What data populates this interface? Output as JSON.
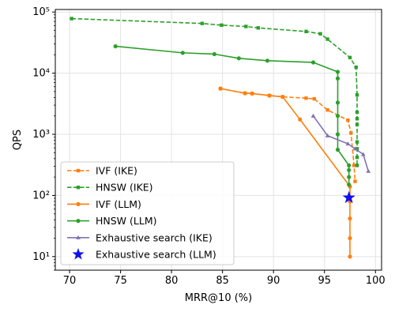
{
  "chart_data": {
    "type": "line",
    "title": "",
    "xlabel": "MRR@10 (%)",
    "ylabel": "QPS",
    "x_scale": "linear",
    "y_scale": "log",
    "xlim": [
      68.6,
      100.6
    ],
    "ylim": [
      6,
      110000
    ],
    "x_ticks": [
      70,
      75,
      80,
      85,
      90,
      95,
      100
    ],
    "y_ticks": [
      {
        "value": 10,
        "label": "10¹"
      },
      {
        "value": 100,
        "label": "10²"
      },
      {
        "value": 1000,
        "label": "10³"
      },
      {
        "value": 10000,
        "label": "10⁴"
      },
      {
        "value": 100000,
        "label": "10⁵"
      }
    ],
    "grid": true,
    "legend_position": "lower-left",
    "series": [
      {
        "name": "IVF (IKE)",
        "color": "#ff7f0e",
        "linestyle": "dashed",
        "marker": "square",
        "points": [
          [
            84.8,
            5600
          ],
          [
            87.2,
            4700
          ],
          [
            87.9,
            4650
          ],
          [
            89.6,
            4300
          ],
          [
            90.9,
            4100
          ],
          [
            93.2,
            3900
          ],
          [
            94.0,
            3800
          ],
          [
            95.3,
            2500
          ],
          [
            97.3,
            1700
          ],
          [
            97.6,
            1050
          ],
          [
            97.9,
            310
          ],
          [
            98.0,
            170
          ]
        ]
      },
      {
        "name": "HNSW (IKE)",
        "color": "#2ca02c",
        "linestyle": "dashed",
        "marker": "square",
        "points": [
          [
            70.2,
            78000
          ],
          [
            83.0,
            65000
          ],
          [
            84.9,
            61000
          ],
          [
            87.3,
            58000
          ],
          [
            88.5,
            55000
          ],
          [
            93.2,
            48000
          ],
          [
            94.6,
            44000
          ],
          [
            95.3,
            36000
          ],
          [
            97.5,
            18000
          ],
          [
            98.1,
            12500
          ],
          [
            98.2,
            4400
          ],
          [
            98.2,
            2300
          ],
          [
            98.2,
            1800
          ],
          [
            98.2,
            1450
          ],
          [
            98.2,
            750
          ],
          [
            98.2,
            580
          ],
          [
            98.2,
            420
          ],
          [
            98.2,
            310
          ]
        ]
      },
      {
        "name": "IVF (LLM)",
        "color": "#ff7f0e",
        "linestyle": "solid",
        "marker": "circle",
        "points": [
          [
            84.8,
            5600
          ],
          [
            87.2,
            4700
          ],
          [
            87.9,
            4650
          ],
          [
            89.6,
            4300
          ],
          [
            90.9,
            4100
          ],
          [
            92.6,
            1750
          ],
          [
            97.5,
            140
          ],
          [
            97.5,
            80
          ],
          [
            97.5,
            42
          ],
          [
            97.5,
            20
          ],
          [
            97.5,
            10
          ]
        ]
      },
      {
        "name": "HNSW (LLM)",
        "color": "#2ca02c",
        "linestyle": "solid",
        "marker": "circle",
        "points": [
          [
            74.5,
            27500
          ],
          [
            81.1,
            21500
          ],
          [
            84.2,
            20500
          ],
          [
            86.6,
            17500
          ],
          [
            89.4,
            16000
          ],
          [
            93.9,
            15000
          ],
          [
            96.3,
            10500
          ],
          [
            96.3,
            8200
          ],
          [
            96.3,
            3300
          ],
          [
            96.3,
            2000
          ],
          [
            96.3,
            1000
          ],
          [
            96.3,
            560
          ],
          [
            97.4,
            310
          ],
          [
            97.4,
            260
          ],
          [
            97.4,
            200
          ],
          [
            97.4,
            150
          ]
        ]
      },
      {
        "name": "Exhaustive search (IKE)",
        "color": "#8172b3",
        "linestyle": "solid",
        "marker": "triangle",
        "points": [
          [
            93.9,
            2000
          ],
          [
            95.3,
            950
          ],
          [
            97.3,
            700
          ],
          [
            98.0,
            580
          ],
          [
            98.8,
            470
          ],
          [
            99.3,
            250
          ]
        ]
      },
      {
        "name": "Exhaustive search (LLM)",
        "color": "#1010ee",
        "linestyle": "none",
        "marker": "star",
        "points": [
          [
            97.4,
            92
          ]
        ]
      }
    ]
  }
}
